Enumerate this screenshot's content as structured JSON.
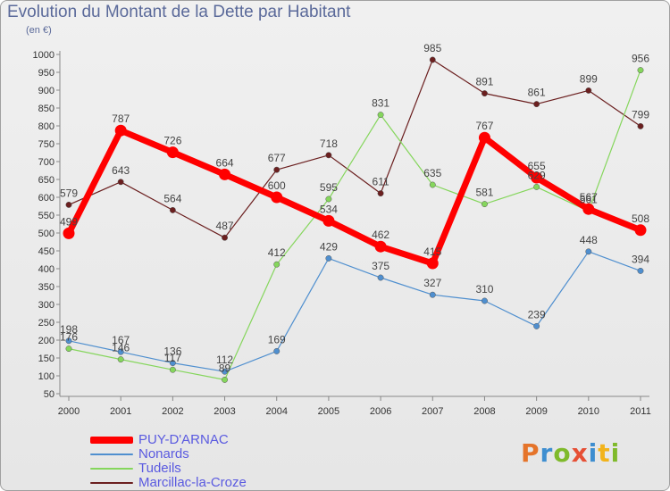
{
  "title": "Evolution du Montant de la Dette par Habitant",
  "subtitle": "(en €)",
  "logo": {
    "text": "Proxiti",
    "colors": [
      "#e5742a",
      "#3e8ed0",
      "#7fba2b",
      "#e64f35",
      "#3e8ed0",
      "#f2b31b",
      "#7fba2b"
    ]
  },
  "chart_data": {
    "type": "line",
    "title": "Evolution du Montant de la Dette par Habitant",
    "ylabel": "(en €)",
    "x": [
      "2000",
      "2001",
      "2002",
      "2003",
      "2004",
      "2005",
      "2006",
      "2007",
      "2008",
      "2009",
      "2010",
      "2011"
    ],
    "ylim": [
      50,
      1000
    ],
    "yticks": [
      50,
      100,
      150,
      200,
      250,
      300,
      350,
      400,
      450,
      500,
      550,
      600,
      650,
      700,
      750,
      800,
      850,
      900,
      950,
      1000
    ],
    "grid": false,
    "legend_position": "bottom-left",
    "series": [
      {
        "name": "PUY-D'ARNAC",
        "color": "#ff0000",
        "values": [
          499,
          787,
          726,
          664,
          600,
          534,
          462,
          415,
          767,
          655,
          567,
          508
        ]
      },
      {
        "name": "Nonards",
        "color": "#4f8fcf",
        "values": [
          198,
          167,
          136,
          112,
          169,
          429,
          375,
          327,
          310,
          239,
          448,
          394
        ]
      },
      {
        "name": "Tudeils",
        "color": "#85d65c",
        "values": [
          176,
          146,
          117,
          89,
          412,
          595,
          831,
          635,
          581,
          629,
          561,
          956
        ]
      },
      {
        "name": "Marcillac-la-Croze",
        "color": "#6b1f1f",
        "values": [
          579,
          643,
          564,
          487,
          677,
          718,
          611,
          985,
          891,
          861,
          899,
          799
        ]
      }
    ]
  }
}
